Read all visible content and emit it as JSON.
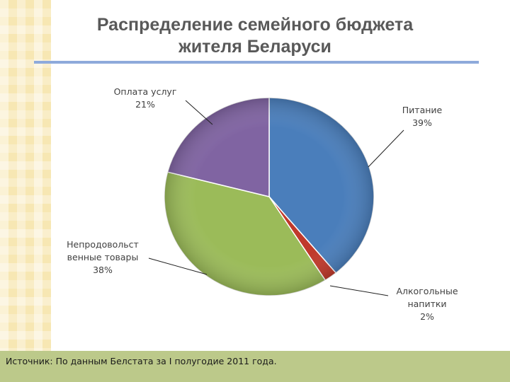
{
  "title_line1": "Распределение семейного бюджета",
  "title_line2": "жителя Беларуси",
  "footer": {
    "label": "Источник:",
    "text": "По данным Белстата за I полугодие 2011 года."
  },
  "chart_data": {
    "type": "pie",
    "slices": [
      {
        "name": "Питание",
        "value": 39,
        "label_lines": [
          "Питание"
        ],
        "pct_label": "39%",
        "color": "#4a7ebb"
      },
      {
        "name": "Алкогольные напитки",
        "value": 2,
        "label_lines": [
          "Алкогольные",
          "напитки"
        ],
        "pct_label": "2%",
        "color": "#c0392b"
      },
      {
        "name": "Непродовольственные товары",
        "value": 38,
        "label_lines": [
          "Непродовольст",
          "венные товары"
        ],
        "pct_label": "38%",
        "color": "#9bbb59"
      },
      {
        "name": "Оплата услуг",
        "value": 21,
        "label_lines": [
          "Оплата услуг"
        ],
        "pct_label": "21%",
        "color": "#8064a2"
      }
    ]
  }
}
